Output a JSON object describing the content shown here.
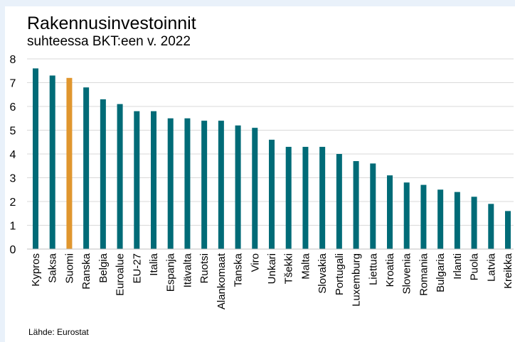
{
  "chart_data": {
    "type": "bar",
    "title": "Rakennusinvestoinnit",
    "subtitle": "suhteessa BKT:een v. 2022",
    "source": "Lähde: Eurostat",
    "categories": [
      "Kypros",
      "Saksa",
      "Suomi",
      "Ranska",
      "Belgia",
      "Euroalue",
      "EU-27",
      "Italia",
      "Espanja",
      "Itävalta",
      "Ruotsi",
      "Alankomaat",
      "Tanska",
      "Viro",
      "Unkari",
      "Tšekki",
      "Malta",
      "Slovakia",
      "Portugali",
      "Luxemburg",
      "Liettua",
      "Kroatia",
      "Slovenia",
      "Romania",
      "Bulgaria",
      "Irlanti",
      "Puola",
      "Latvia",
      "Kreikka"
    ],
    "values": [
      7.6,
      7.3,
      7.2,
      6.8,
      6.3,
      6.1,
      5.8,
      5.8,
      5.5,
      5.5,
      5.4,
      5.4,
      5.2,
      5.1,
      4.6,
      4.3,
      4.3,
      4.3,
      4.0,
      3.7,
      3.6,
      3.1,
      2.8,
      2.7,
      2.5,
      2.4,
      2.2,
      1.9,
      1.6
    ],
    "highlight": "Suomi",
    "ylim": [
      0,
      8
    ],
    "yticks": [
      0,
      1,
      2,
      3,
      4,
      5,
      6,
      7,
      8
    ],
    "grid": true,
    "colors": {
      "bar": "#006b77",
      "highlight": "#e0962e",
      "grid": "#d9d9d9"
    }
  }
}
